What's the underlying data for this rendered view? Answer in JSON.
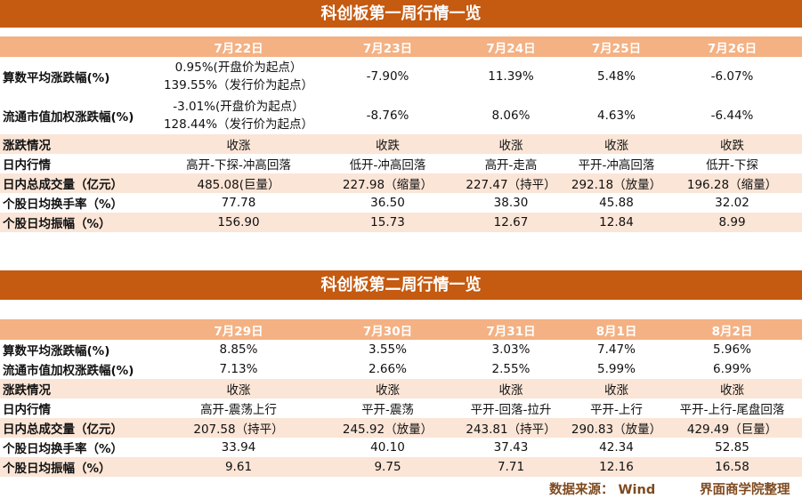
{
  "week1": {
    "title": "科创板第一周行情一览",
    "dates": [
      "7月22日",
      "7月23日",
      "7月24日",
      "7月25日",
      "7月26日"
    ],
    "rows": [
      {
        "label": "算数平均涨跌幅(%)",
        "values": [
          [
            "0.95%(开盘价为起点）",
            "139.55%（发行价为起点）"
          ],
          [
            "-7.90%"
          ],
          [
            "11.39%"
          ],
          [
            "5.48%"
          ],
          [
            "-6.07%"
          ]
        ]
      },
      {
        "label": "流通市值加权涨跌幅(%)",
        "values": [
          [
            "-3.01%(开盘价为起点）",
            "128.44%（发行价为起点）"
          ],
          [
            "-8.76%"
          ],
          [
            "8.06%"
          ],
          [
            "4.63%"
          ],
          [
            "-6.44%"
          ]
        ]
      },
      {
        "label": "涨跌情况",
        "values": [
          "收涨",
          "收跌",
          "收涨",
          "收涨",
          "收跌"
        ]
      },
      {
        "label": "日内行情",
        "values": [
          "高开-下探-冲高回落",
          "低开-冲高回落",
          "高开-走高",
          "平开-冲高回落",
          "低开-下探"
        ]
      },
      {
        "label": "日内总成交量（亿元）",
        "values": [
          "485.08(巨量）",
          "227.98（缩量）",
          "227.47（持平）",
          "292.18（放量）",
          "196.28（缩量）"
        ]
      },
      {
        "label": "个股日均换手率（%）",
        "values": [
          "77.78",
          "36.50",
          "38.30",
          "45.88",
          "32.02"
        ]
      },
      {
        "label": "个股日均振幅（%）",
        "values": [
          "156.90",
          "15.73",
          "12.67",
          "12.84",
          "8.99"
        ]
      }
    ]
  },
  "week2": {
    "title": "科创板第二周行情一览",
    "dates": [
      "7月29日",
      "7月30日",
      "7月31日",
      "8月1日",
      "8月2日"
    ],
    "rows": [
      {
        "label": "算数平均涨跌幅(%)",
        "values": [
          "8.85%",
          "3.55%",
          "3.03%",
          "7.47%",
          "5.96%"
        ]
      },
      {
        "label": "流通市值加权涨跌幅(%)",
        "values": [
          "7.13%",
          "2.66%",
          "2.55%",
          "5.99%",
          "6.99%"
        ]
      },
      {
        "label": "涨跌情况",
        "values": [
          "收涨",
          "收涨",
          "收涨",
          "收涨",
          "收涨"
        ]
      },
      {
        "label": "日内行情",
        "values": [
          "高开-震荡上行",
          "平开-震荡",
          "平开-回落-拉升",
          "平开-上行",
          "平开-上行-尾盘回落"
        ]
      },
      {
        "label": "日内总成交量（亿元）",
        "values": [
          "207.58（持平）",
          "245.92（放量）",
          "243.81（持平）",
          "290.83（放量）",
          "429.49（巨量）"
        ]
      },
      {
        "label": "个股日均换手率（%）",
        "values": [
          "33.94",
          "40.10",
          "37.43",
          "42.34",
          "52.85"
        ]
      },
      {
        "label": "个股日均振幅（%）",
        "values": [
          "9.61",
          "9.75",
          "7.71",
          "12.16",
          "16.58"
        ]
      }
    ]
  },
  "footer": {
    "source": "数据来源： Wind",
    "credit": "界面商学院整理"
  }
}
